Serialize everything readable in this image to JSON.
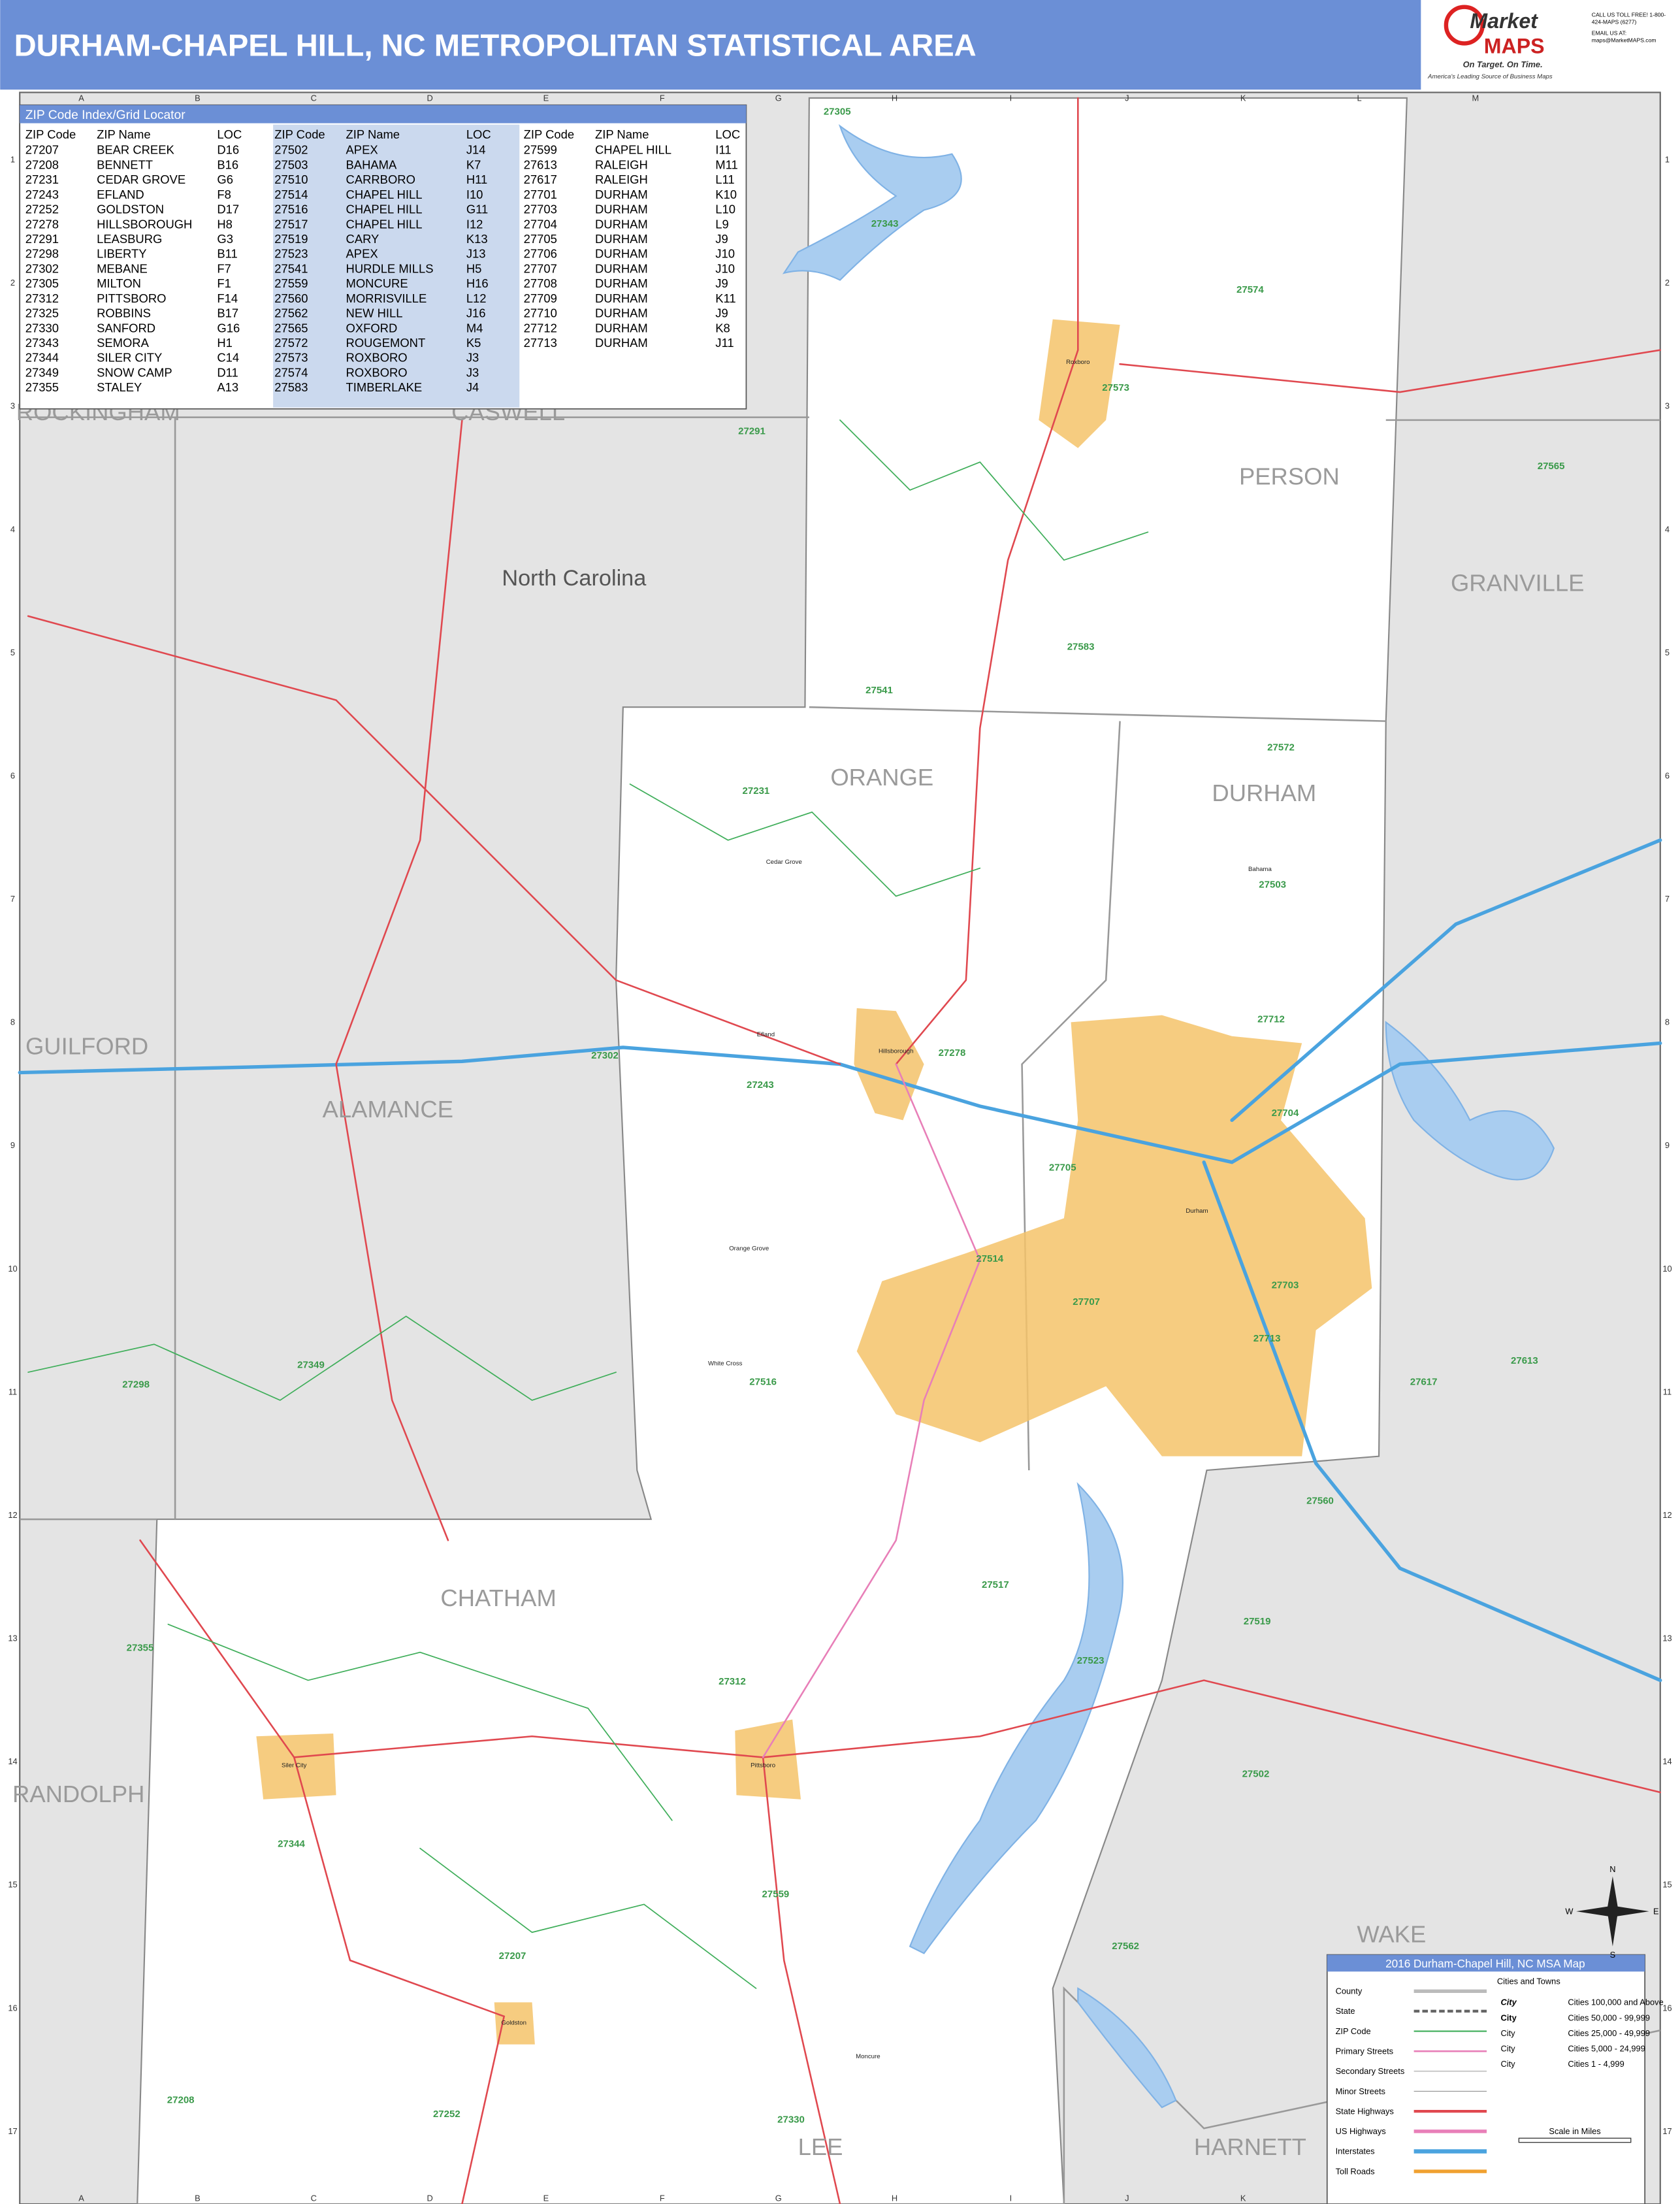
{
  "header": {
    "title": "DURHAM-CHAPEL HILL, NC METROPOLITAN STATISTICAL AREA",
    "logo": {
      "brand_top": "Market",
      "brand_bottom": "MAPS",
      "tagline": "On Target. On Time.",
      "slogan": "America's Leading Source of Business Maps",
      "phone": "CALL US TOLL FREE! 1-800-424-MAPS (6277)",
      "email": "EMAIL US AT: maps@MarketMAPS.com"
    }
  },
  "zip_index": {
    "title": "ZIP Code Index/Grid Locator",
    "columns": [
      "ZIP Code",
      "ZIP Name",
      "LOC"
    ],
    "groups": [
      [
        [
          "27207",
          "BEAR CREEK",
          "D16"
        ],
        [
          "27208",
          "BENNETT",
          "B16"
        ],
        [
          "27231",
          "CEDAR GROVE",
          "G6"
        ],
        [
          "27243",
          "EFLAND",
          "F8"
        ],
        [
          "27252",
          "GOLDSTON",
          "D17"
        ],
        [
          "27278",
          "HILLSBOROUGH",
          "H8"
        ],
        [
          "27291",
          "LEASBURG",
          "G3"
        ],
        [
          "27298",
          "LIBERTY",
          "B11"
        ],
        [
          "27302",
          "MEBANE",
          "F7"
        ],
        [
          "27305",
          "MILTON",
          "F1"
        ],
        [
          "27312",
          "PITTSBORO",
          "F14"
        ],
        [
          "27325",
          "ROBBINS",
          "B17"
        ],
        [
          "27330",
          "SANFORD",
          "G16"
        ],
        [
          "27343",
          "SEMORA",
          "H1"
        ],
        [
          "27344",
          "SILER CITY",
          "C14"
        ],
        [
          "27349",
          "SNOW CAMP",
          "D11"
        ],
        [
          "27355",
          "STALEY",
          "A13"
        ]
      ],
      [
        [
          "27502",
          "APEX",
          "J14"
        ],
        [
          "27503",
          "BAHAMA",
          "K7"
        ],
        [
          "27510",
          "CARRBORO",
          "H11"
        ],
        [
          "27514",
          "CHAPEL HILL",
          "I10"
        ],
        [
          "27516",
          "CHAPEL HILL",
          "G11"
        ],
        [
          "27517",
          "CHAPEL HILL",
          "I12"
        ],
        [
          "27519",
          "CARY",
          "K13"
        ],
        [
          "27523",
          "APEX",
          "J13"
        ],
        [
          "27541",
          "HURDLE MILLS",
          "H5"
        ],
        [
          "27559",
          "MONCURE",
          "H16"
        ],
        [
          "27560",
          "MORRISVILLE",
          "L12"
        ],
        [
          "27562",
          "NEW HILL",
          "J16"
        ],
        [
          "27565",
          "OXFORD",
          "M4"
        ],
        [
          "27572",
          "ROUGEMONT",
          "K5"
        ],
        [
          "27573",
          "ROXBORO",
          "J3"
        ],
        [
          "27574",
          "ROXBORO",
          "J3"
        ],
        [
          "27583",
          "TIMBERLAKE",
          "J4"
        ]
      ],
      [
        [
          "27599",
          "CHAPEL HILL",
          "I11"
        ],
        [
          "27613",
          "RALEIGH",
          "M11"
        ],
        [
          "27617",
          "RALEIGH",
          "L11"
        ],
        [
          "27701",
          "DURHAM",
          "K10"
        ],
        [
          "27703",
          "DURHAM",
          "L10"
        ],
        [
          "27704",
          "DURHAM",
          "L9"
        ],
        [
          "27705",
          "DURHAM",
          "J9"
        ],
        [
          "27706",
          "DURHAM",
          "J10"
        ],
        [
          "27707",
          "DURHAM",
          "J10"
        ],
        [
          "27708",
          "DURHAM",
          "J9"
        ],
        [
          "27709",
          "DURHAM",
          "K11"
        ],
        [
          "27710",
          "DURHAM",
          "J9"
        ],
        [
          "27712",
          "DURHAM",
          "K8"
        ],
        [
          "27713",
          "DURHAM",
          "J11"
        ]
      ]
    ]
  },
  "grid": {
    "columns": [
      "A",
      "B",
      "C",
      "D",
      "E",
      "F",
      "G",
      "H",
      "I",
      "J",
      "K",
      "L",
      "M"
    ],
    "rows": [
      "1",
      "2",
      "3",
      "4",
      "5",
      "6",
      "7",
      "8",
      "9",
      "10",
      "11",
      "12",
      "13",
      "14",
      "15",
      "16",
      "17"
    ]
  },
  "map": {
    "state_label": "North Carolina",
    "counties": [
      "ROCKINGHAM",
      "CASWELL",
      "PERSON",
      "GRANVILLE",
      "ORANGE",
      "DURHAM",
      "GUILFORD",
      "ALAMANCE",
      "CHATHAM",
      "RANDOLPH",
      "WAKE",
      "LEE",
      "HARNETT"
    ],
    "zip_labels": [
      "27305",
      "27343",
      "27574",
      "27573",
      "27291",
      "27565",
      "27583",
      "27541",
      "27572",
      "27231",
      "27503",
      "27712",
      "27278",
      "27302",
      "27243",
      "27704",
      "27705",
      "27514",
      "27707",
      "27703",
      "27349",
      "27713",
      "27613",
      "27516",
      "27298",
      "27617",
      "27560",
      "27517",
      "27519",
      "27355",
      "27523",
      "27312",
      "27502",
      "27344",
      "27559",
      "27562",
      "27207",
      "27208",
      "27330",
      "27252"
    ],
    "places": [
      "Durham",
      "Hillsborough",
      "Efland",
      "Cedar Grove",
      "Bahama",
      "Orange Grove",
      "White Cross",
      "Roxboro",
      "Siler City",
      "Pittsboro",
      "Goldston",
      "Moncure"
    ]
  },
  "compass": [
    "N",
    "E",
    "S",
    "W"
  ],
  "legend": {
    "title": "2016 Durham-Chapel Hill, NC MSA Map",
    "items": [
      "County",
      "State",
      "ZIP Code",
      "Primary Streets",
      "Secondary Streets",
      "Minor Streets",
      "State Highways",
      "US Highways",
      "Interstates",
      "Toll Roads"
    ],
    "cities_title": "Cities and Towns",
    "city_classes": [
      {
        "sample": "City",
        "range": "Cities 100,000 and Above"
      },
      {
        "sample": "City",
        "range": "Cities 50,000 - 99,999"
      },
      {
        "sample": "City",
        "range": "Cities 25,000 - 49,999"
      },
      {
        "sample": "City",
        "range": "Cities 5,000 - 24,999"
      },
      {
        "sample": "City",
        "range": "Cities 1 - 4,999"
      }
    ],
    "scale_label": "Scale in Miles"
  }
}
